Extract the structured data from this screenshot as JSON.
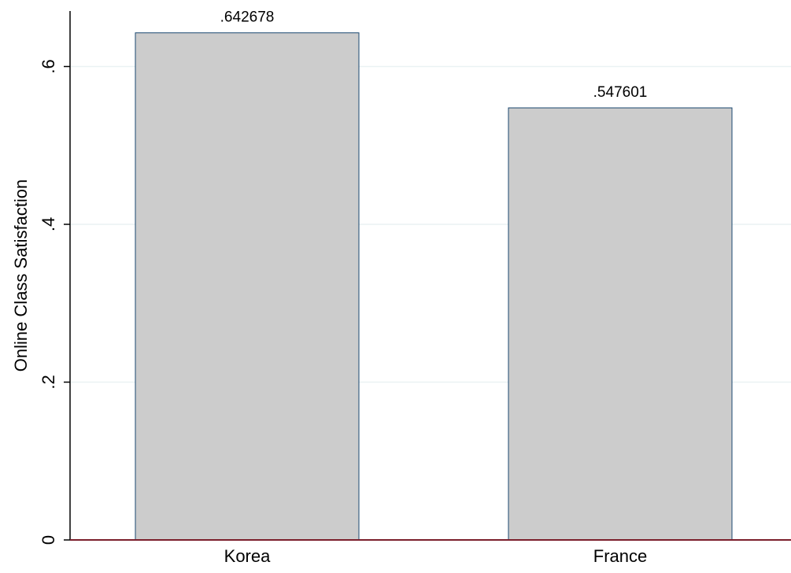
{
  "chart_data": {
    "type": "bar",
    "categories": [
      "Korea",
      "France"
    ],
    "values": [
      0.642678,
      0.547601
    ],
    "value_labels": [
      ".642678",
      ".547601"
    ],
    "title": "",
    "xlabel": "",
    "ylabel": "Online Class Satisfaction",
    "ylim": [
      0,
      0.7
    ],
    "yticks": [
      0,
      0.2,
      0.4,
      0.6
    ],
    "ytick_labels": [
      "0",
      ".2",
      ".4",
      ".6"
    ],
    "grid": true,
    "legend": "none",
    "colors": {
      "bar_fill": "#cccccc",
      "bar_stroke": "#1a476f",
      "grid": "#eaf2f3",
      "x_axis_line": "#7b1f2b",
      "axis": "#000000"
    }
  }
}
